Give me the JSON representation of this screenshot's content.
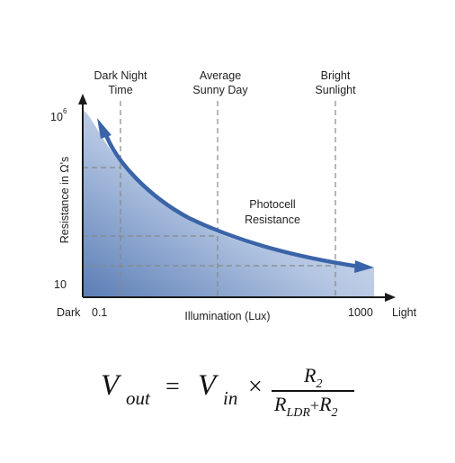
{
  "colors": {
    "curve": "#3b64a8",
    "fill_dark": "#5a7db5",
    "fill_light": "#f4f7fc",
    "axis": "#1a1a1a",
    "guide": "#888888"
  },
  "diagram": {
    "markers": [
      {
        "line1": "Dark Night",
        "line2": "Time"
      },
      {
        "line1": "Average",
        "line2": "Sunny Day"
      },
      {
        "line1": "Bright",
        "line2": "Sunlight"
      }
    ],
    "y_axis_title": "Resistance in Ω's",
    "y_top_base": "10",
    "y_top_exp": "6",
    "y_bottom": "10",
    "x_dark": "Dark",
    "x_start": "0.1",
    "x_title": "Illumination (Lux)",
    "x_end": "1000",
    "x_light": "Light",
    "curve_label_line1": "Photocell",
    "curve_label_line2": "Resistance"
  },
  "formula": {
    "vout": "V",
    "vout_sub": "out",
    "equals": "=",
    "vin": "V",
    "vin_sub": "in",
    "times": "×",
    "num": "R",
    "num_sub": "2",
    "den_r1": "R",
    "den_r1_sub": "LDR",
    "den_plus": "+",
    "den_r2": "R",
    "den_r2_sub": "2"
  }
}
